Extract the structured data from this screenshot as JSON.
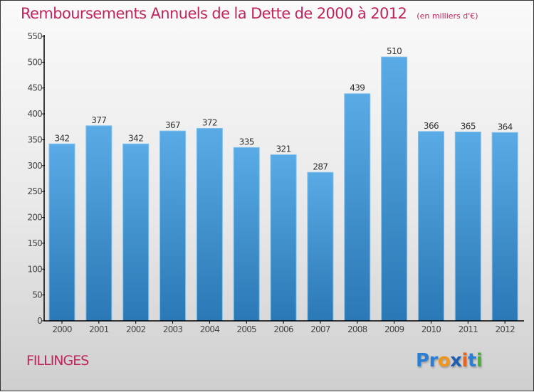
{
  "chart_data": {
    "type": "bar",
    "title": "Remboursements Annuels de la Dette de 2000 à 2012",
    "subtitle": "(en milliers d'€)",
    "xlabel": "",
    "ylabel": "",
    "categories": [
      "2000",
      "2001",
      "2002",
      "2003",
      "2004",
      "2005",
      "2006",
      "2007",
      "2008",
      "2009",
      "2010",
      "2011",
      "2012"
    ],
    "values": [
      342,
      377,
      342,
      367,
      372,
      335,
      321,
      287,
      439,
      510,
      366,
      365,
      364
    ],
    "ylim": [
      0,
      550
    ],
    "yticks": [
      0,
      50,
      100,
      150,
      200,
      250,
      300,
      350,
      400,
      450,
      500,
      550
    ],
    "grid": false,
    "legend": "none",
    "bar_color_top": "#5aabe5",
    "bar_color_bottom": "#2a78b5"
  },
  "footer": {
    "commune": "FILLINGES",
    "logo_letters": [
      {
        "ch": "P",
        "color": "#2a7fd4"
      },
      {
        "ch": "r",
        "color": "#2a7fd4"
      },
      {
        "ch": "o",
        "color": "#f0961e"
      },
      {
        "ch": "x",
        "color": "#1f5fb0"
      },
      {
        "ch": "i",
        "color": "#e8641e"
      },
      {
        "ch": "t",
        "color": "#2a7fd4"
      },
      {
        "ch": "i",
        "color": "#4caf3a"
      }
    ]
  },
  "colors": {
    "title": "#c0245c",
    "axis": "#000000"
  }
}
